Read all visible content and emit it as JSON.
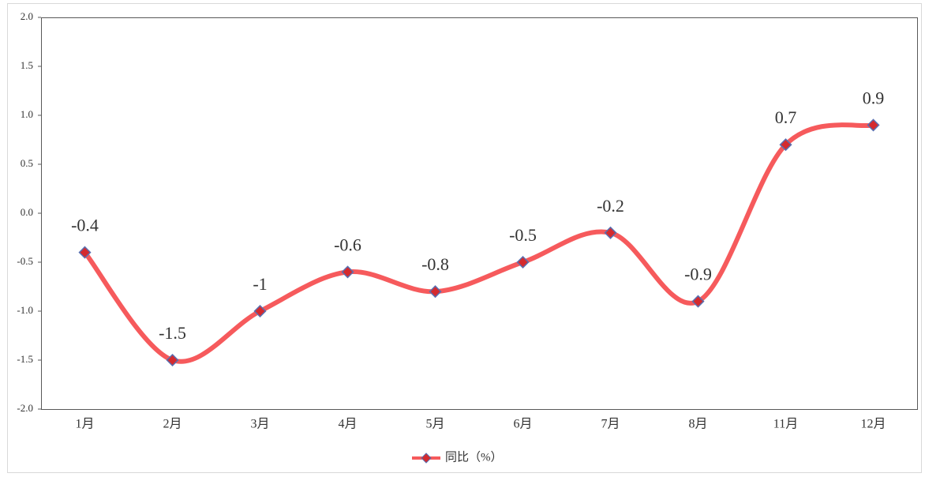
{
  "chart_data": {
    "type": "line",
    "categories": [
      "1月",
      "2月",
      "3月",
      "4月",
      "5月",
      "6月",
      "7月",
      "8月",
      "11月",
      "12月"
    ],
    "series": [
      {
        "name": "同比（%）",
        "color": "#f65a5c",
        "marker_color": "#d42a2e",
        "marker_edge": "#5a6fb0",
        "values": [
          -0.4,
          -1.5,
          -1,
          -0.6,
          -0.8,
          -0.5,
          -0.2,
          -0.9,
          0.7,
          0.9
        ]
      }
    ],
    "ylim": [
      -2,
      2
    ],
    "yticks": [
      {
        "value": -2,
        "label": "-2.0"
      },
      {
        "value": -1.5,
        "label": "-1.5"
      },
      {
        "value": -1,
        "label": "-1.0"
      },
      {
        "value": -0.5,
        "label": "-0.5"
      },
      {
        "value": 0,
        "label": "0.0"
      },
      {
        "value": 0.5,
        "label": "0.5"
      },
      {
        "value": 1,
        "label": "1.0"
      },
      {
        "value": 1.5,
        "label": "1.5"
      },
      {
        "value": 2,
        "label": "2.0"
      }
    ],
    "legend": "bottom",
    "smooth": true
  }
}
